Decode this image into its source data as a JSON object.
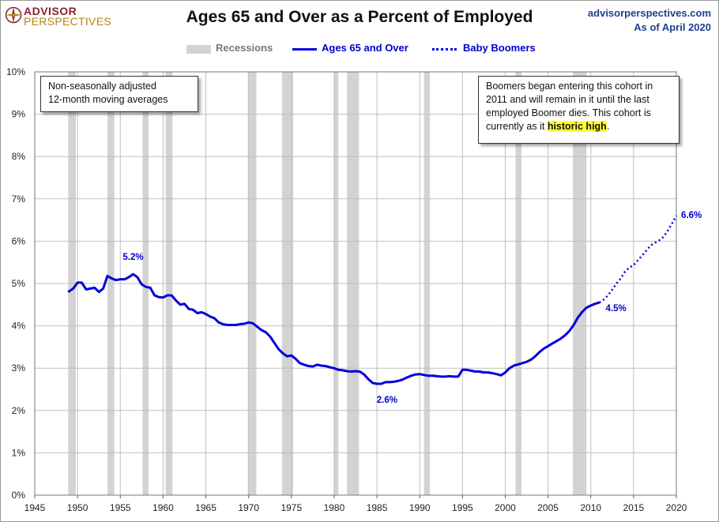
{
  "header": {
    "logo_line1": "ADVISOR",
    "logo_line2": "PERSPECTIVES",
    "title": "Ages 65 and Over as a Percent of Employed",
    "site": "advisorperspectives.com",
    "date": "As of April 2020"
  },
  "notes": {
    "left_line1": "Non-seasonally adjusted",
    "left_line2": "12-month moving averages",
    "right_pre": "Boomers began entering this cohort in 2011  and will remain in it until the last employed Boomer dies. This cohort is currently as it ",
    "right_highlight": "historic high",
    "right_post": "."
  },
  "colors": {
    "line": "#0000dd",
    "recession": "#d3d3d3",
    "grid": "#bfbfbf",
    "annotation": "#0000cc"
  },
  "chart_data": {
    "type": "line",
    "xlim": [
      1945,
      2020
    ],
    "ylim": [
      0,
      10
    ],
    "x_ticks": [
      "1945",
      "1950",
      "1955",
      "1960",
      "1965",
      "1970",
      "1975",
      "1980",
      "1985",
      "1990",
      "1995",
      "2000",
      "2005",
      "2010",
      "2015",
      "2020"
    ],
    "y_ticks": [
      "0%",
      "1%",
      "2%",
      "3%",
      "4%",
      "5%",
      "6%",
      "7%",
      "8%",
      "9%",
      "10%"
    ],
    "grid": "vertical and horizontal",
    "legend": {
      "position": "top-center",
      "entries": [
        "Recessions",
        "Ages 65 and Over",
        "Baby Boomers"
      ]
    },
    "recessions": [
      [
        1948.9,
        1949.8
      ],
      [
        1953.5,
        1954.3
      ],
      [
        1957.6,
        1958.3
      ],
      [
        1960.3,
        1961.1
      ],
      [
        1969.9,
        1970.9
      ],
      [
        1973.9,
        1975.2
      ],
      [
        1980.0,
        1980.5
      ],
      [
        1981.5,
        1982.9
      ],
      [
        1990.5,
        1991.2
      ],
      [
        2001.2,
        2001.9
      ],
      [
        2007.9,
        2009.5
      ]
    ],
    "series": [
      {
        "name": "Ages 65 and Over",
        "style": "solid",
        "x": [
          1948.9,
          1949.5,
          1950,
          1950.5,
          1951,
          1951.5,
          1952,
          1952.5,
          1953,
          1953.5,
          1954,
          1954.5,
          1955,
          1955.5,
          1956,
          1956.5,
          1957,
          1957.5,
          1958,
          1958.5,
          1959,
          1959.5,
          1960,
          1960.5,
          1961,
          1961.5,
          1962,
          1962.5,
          1963,
          1963.5,
          1964,
          1964.5,
          1965,
          1965.5,
          1966,
          1966.5,
          1967,
          1967.5,
          1968,
          1968.5,
          1969,
          1969.5,
          1970,
          1970.5,
          1971,
          1971.5,
          1972,
          1972.5,
          1973,
          1973.5,
          1974,
          1974.5,
          1975,
          1975.5,
          1976,
          1976.5,
          1977,
          1977.5,
          1978,
          1978.5,
          1979,
          1979.5,
          1980,
          1980.5,
          1981,
          1981.5,
          1982,
          1982.5,
          1983,
          1983.5,
          1984,
          1984.5,
          1985,
          1985.5,
          1986,
          1986.5,
          1987,
          1987.5,
          1988,
          1988.5,
          1989,
          1989.5,
          1990,
          1990.5,
          1991,
          1991.5,
          1992,
          1992.5,
          1993,
          1993.5,
          1994,
          1994.5,
          1995,
          1995.5,
          1996,
          1996.5,
          1997,
          1997.5,
          1998,
          1998.5,
          1999,
          1999.5,
          2000,
          2000.5,
          2001,
          2001.5,
          2002,
          2002.5,
          2003,
          2003.5,
          2004,
          2004.5,
          2005,
          2005.5,
          2006,
          2006.5,
          2007,
          2007.5,
          2008,
          2008.5,
          2009,
          2009.5,
          2010,
          2010.5,
          2011
        ],
        "values": [
          4.8,
          4.88,
          5.02,
          5.02,
          4.86,
          4.88,
          4.9,
          4.8,
          4.88,
          5.18,
          5.12,
          5.08,
          5.1,
          5.1,
          5.15,
          5.22,
          5.15,
          4.98,
          4.92,
          4.9,
          4.72,
          4.68,
          4.67,
          4.72,
          4.72,
          4.6,
          4.5,
          4.52,
          4.4,
          4.38,
          4.3,
          4.32,
          4.28,
          4.22,
          4.18,
          4.08,
          4.04,
          4.02,
          4.02,
          4.02,
          4.04,
          4.05,
          4.08,
          4.06,
          3.98,
          3.9,
          3.85,
          3.75,
          3.6,
          3.45,
          3.35,
          3.28,
          3.3,
          3.22,
          3.12,
          3.08,
          3.05,
          3.04,
          3.08,
          3.06,
          3.05,
          3.02,
          3.0,
          2.96,
          2.95,
          2.93,
          2.92,
          2.93,
          2.92,
          2.85,
          2.74,
          2.65,
          2.63,
          2.63,
          2.67,
          2.67,
          2.68,
          2.7,
          2.73,
          2.78,
          2.82,
          2.85,
          2.86,
          2.84,
          2.82,
          2.82,
          2.81,
          2.8,
          2.8,
          2.81,
          2.8,
          2.8,
          2.96,
          2.96,
          2.94,
          2.92,
          2.92,
          2.9,
          2.9,
          2.88,
          2.86,
          2.83,
          2.9,
          3.0,
          3.06,
          3.09,
          3.12,
          3.15,
          3.2,
          3.28,
          3.38,
          3.46,
          3.52,
          3.58,
          3.64,
          3.7,
          3.78,
          3.88,
          4.02,
          4.2,
          4.33,
          4.43,
          4.48,
          4.52,
          4.55
        ]
      },
      {
        "name": "Baby Boomers",
        "style": "dotted",
        "x": [
          2011,
          2011.5,
          2012,
          2012.5,
          2013,
          2013.5,
          2014,
          2014.5,
          2015,
          2015.5,
          2016,
          2016.5,
          2017,
          2017.5,
          2018,
          2018.5,
          2019,
          2019.5,
          2020
        ],
        "values": [
          4.55,
          4.62,
          4.72,
          4.85,
          5.0,
          5.12,
          5.28,
          5.38,
          5.43,
          5.55,
          5.66,
          5.78,
          5.9,
          5.96,
          6.02,
          6.1,
          6.25,
          6.42,
          6.6
        ]
      }
    ],
    "annotations": [
      {
        "text": "5.2%",
        "x": 1956.5,
        "y": 5.22
      },
      {
        "text": "2.6%",
        "x": 1986,
        "y": 2.63
      },
      {
        "text": "4.5%",
        "x": 2011,
        "y": 4.5
      },
      {
        "text": "6.6%",
        "x": 2020,
        "y": 6.6
      }
    ]
  }
}
